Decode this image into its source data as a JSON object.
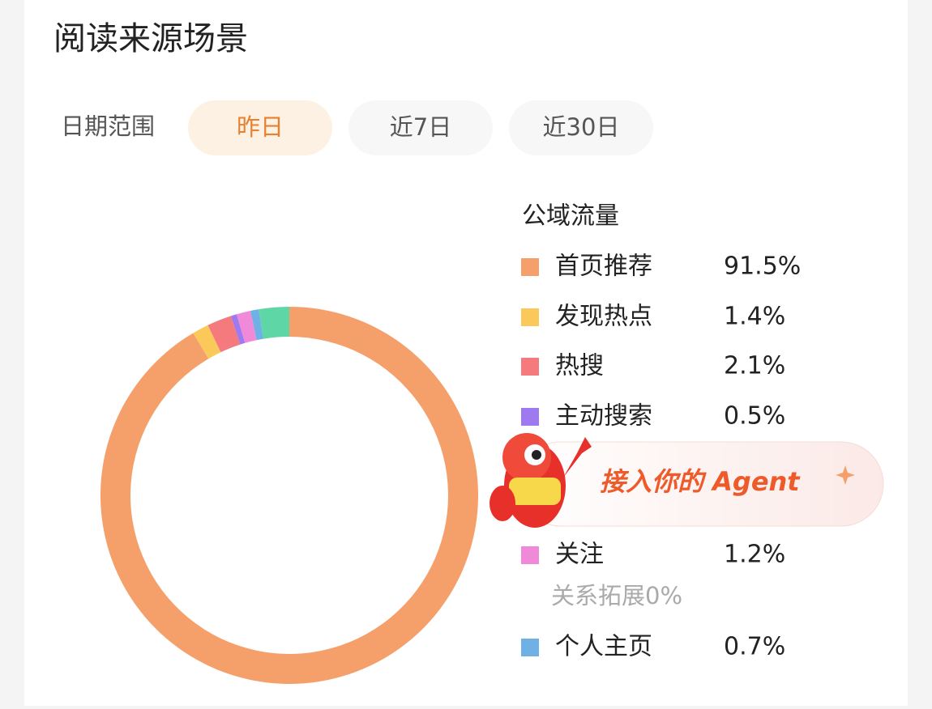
{
  "header": {
    "title": "阅读来源场景"
  },
  "filters": {
    "label": "日期范围",
    "options": [
      "昨日",
      "近7日",
      "近30日"
    ],
    "selected": 0
  },
  "chart_data": {
    "type": "pie",
    "title": "公域流量",
    "categories": [
      "首页推荐",
      "发现热点",
      "热搜",
      "主动搜索",
      "关注",
      "关系拓展",
      "个人主页",
      null
    ],
    "values": [
      91.5,
      1.4,
      2.1,
      0.5,
      1.2,
      0,
      0.7,
      2.6
    ],
    "value_labels": [
      "91.5%",
      "1.4%",
      "2.1%",
      "0.5%",
      "1.2%",
      "0%",
      "0.7%",
      null
    ],
    "colors": [
      "#f5a06a",
      "#fbc85a",
      "#f47a7e",
      "#9d7af0",
      "#f08ad8",
      "#c9c9c9",
      "#6fb0e6",
      "#5fd6a6"
    ]
  },
  "overlay": {
    "text": "接入你的 Agent"
  }
}
